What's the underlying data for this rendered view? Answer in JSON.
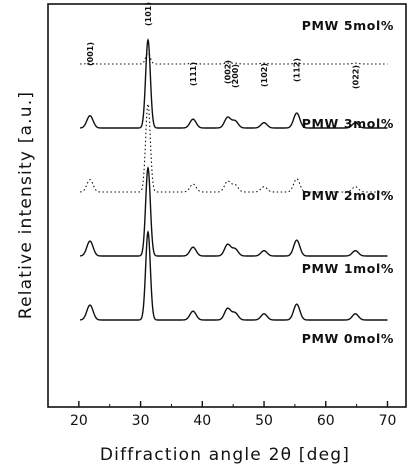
{
  "chart_data": {
    "type": "line",
    "xlabel": "Diffraction angle 2θ [deg]",
    "ylabel": "Relative intensity [a.u.]",
    "xlim": [
      15,
      73
    ],
    "x_ticks": [
      20,
      30,
      40,
      50,
      60,
      70
    ],
    "y_ticks_labeled": false,
    "grid": false,
    "peak_positions_deg": [
      21.8,
      31.2,
      38.5,
      44.1,
      45.3,
      50.0,
      55.3,
      64.8
    ],
    "peak_labels": [
      "(001)",
      "(101)",
      "(111)",
      "(002)",
      "(200)",
      "(102)",
      "(112)",
      "(022)"
    ],
    "series": [
      {
        "name": "PMW 5mol%",
        "style": "dotted",
        "baseline_offset": 4,
        "peaks": [
          [
            21.8,
            0.01
          ],
          [
            31.2,
            0.12
          ],
          [
            38.5,
            0.01
          ],
          [
            44.1,
            0.01
          ],
          [
            45.3,
            0.01
          ],
          [
            50.0,
            0.01
          ],
          [
            55.3,
            0.01
          ],
          [
            64.8,
            0.01
          ]
        ]
      },
      {
        "name": "PMW 3mol%",
        "style": "solid",
        "baseline_offset": 3,
        "peaks": [
          [
            21.8,
            0.14
          ],
          [
            31.2,
            1.0
          ],
          [
            38.5,
            0.1
          ],
          [
            44.1,
            0.12
          ],
          [
            45.3,
            0.08
          ],
          [
            50.0,
            0.06
          ],
          [
            55.3,
            0.17
          ],
          [
            64.8,
            0.06
          ]
        ]
      },
      {
        "name": "PMW 2mol%",
        "style": "dotted",
        "baseline_offset": 2,
        "peaks": [
          [
            21.8,
            0.14
          ],
          [
            31.2,
            1.0
          ],
          [
            38.5,
            0.09
          ],
          [
            44.1,
            0.12
          ],
          [
            45.3,
            0.08
          ],
          [
            50.0,
            0.06
          ],
          [
            55.3,
            0.15
          ],
          [
            64.8,
            0.06
          ]
        ]
      },
      {
        "name": "PMW 1mol%",
        "style": "solid",
        "baseline_offset": 1,
        "peaks": [
          [
            21.8,
            0.17
          ],
          [
            31.2,
            1.0
          ],
          [
            38.5,
            0.1
          ],
          [
            44.1,
            0.13
          ],
          [
            45.3,
            0.08
          ],
          [
            50.0,
            0.06
          ],
          [
            55.3,
            0.18
          ],
          [
            64.8,
            0.06
          ]
        ]
      },
      {
        "name": "PMW 0mol%",
        "style": "solid",
        "baseline_offset": 0,
        "peaks": [
          [
            21.8,
            0.17
          ],
          [
            31.2,
            1.0
          ],
          [
            38.5,
            0.1
          ],
          [
            44.1,
            0.13
          ],
          [
            45.3,
            0.08
          ],
          [
            50.0,
            0.07
          ],
          [
            55.3,
            0.18
          ],
          [
            64.8,
            0.07
          ]
        ]
      }
    ]
  }
}
